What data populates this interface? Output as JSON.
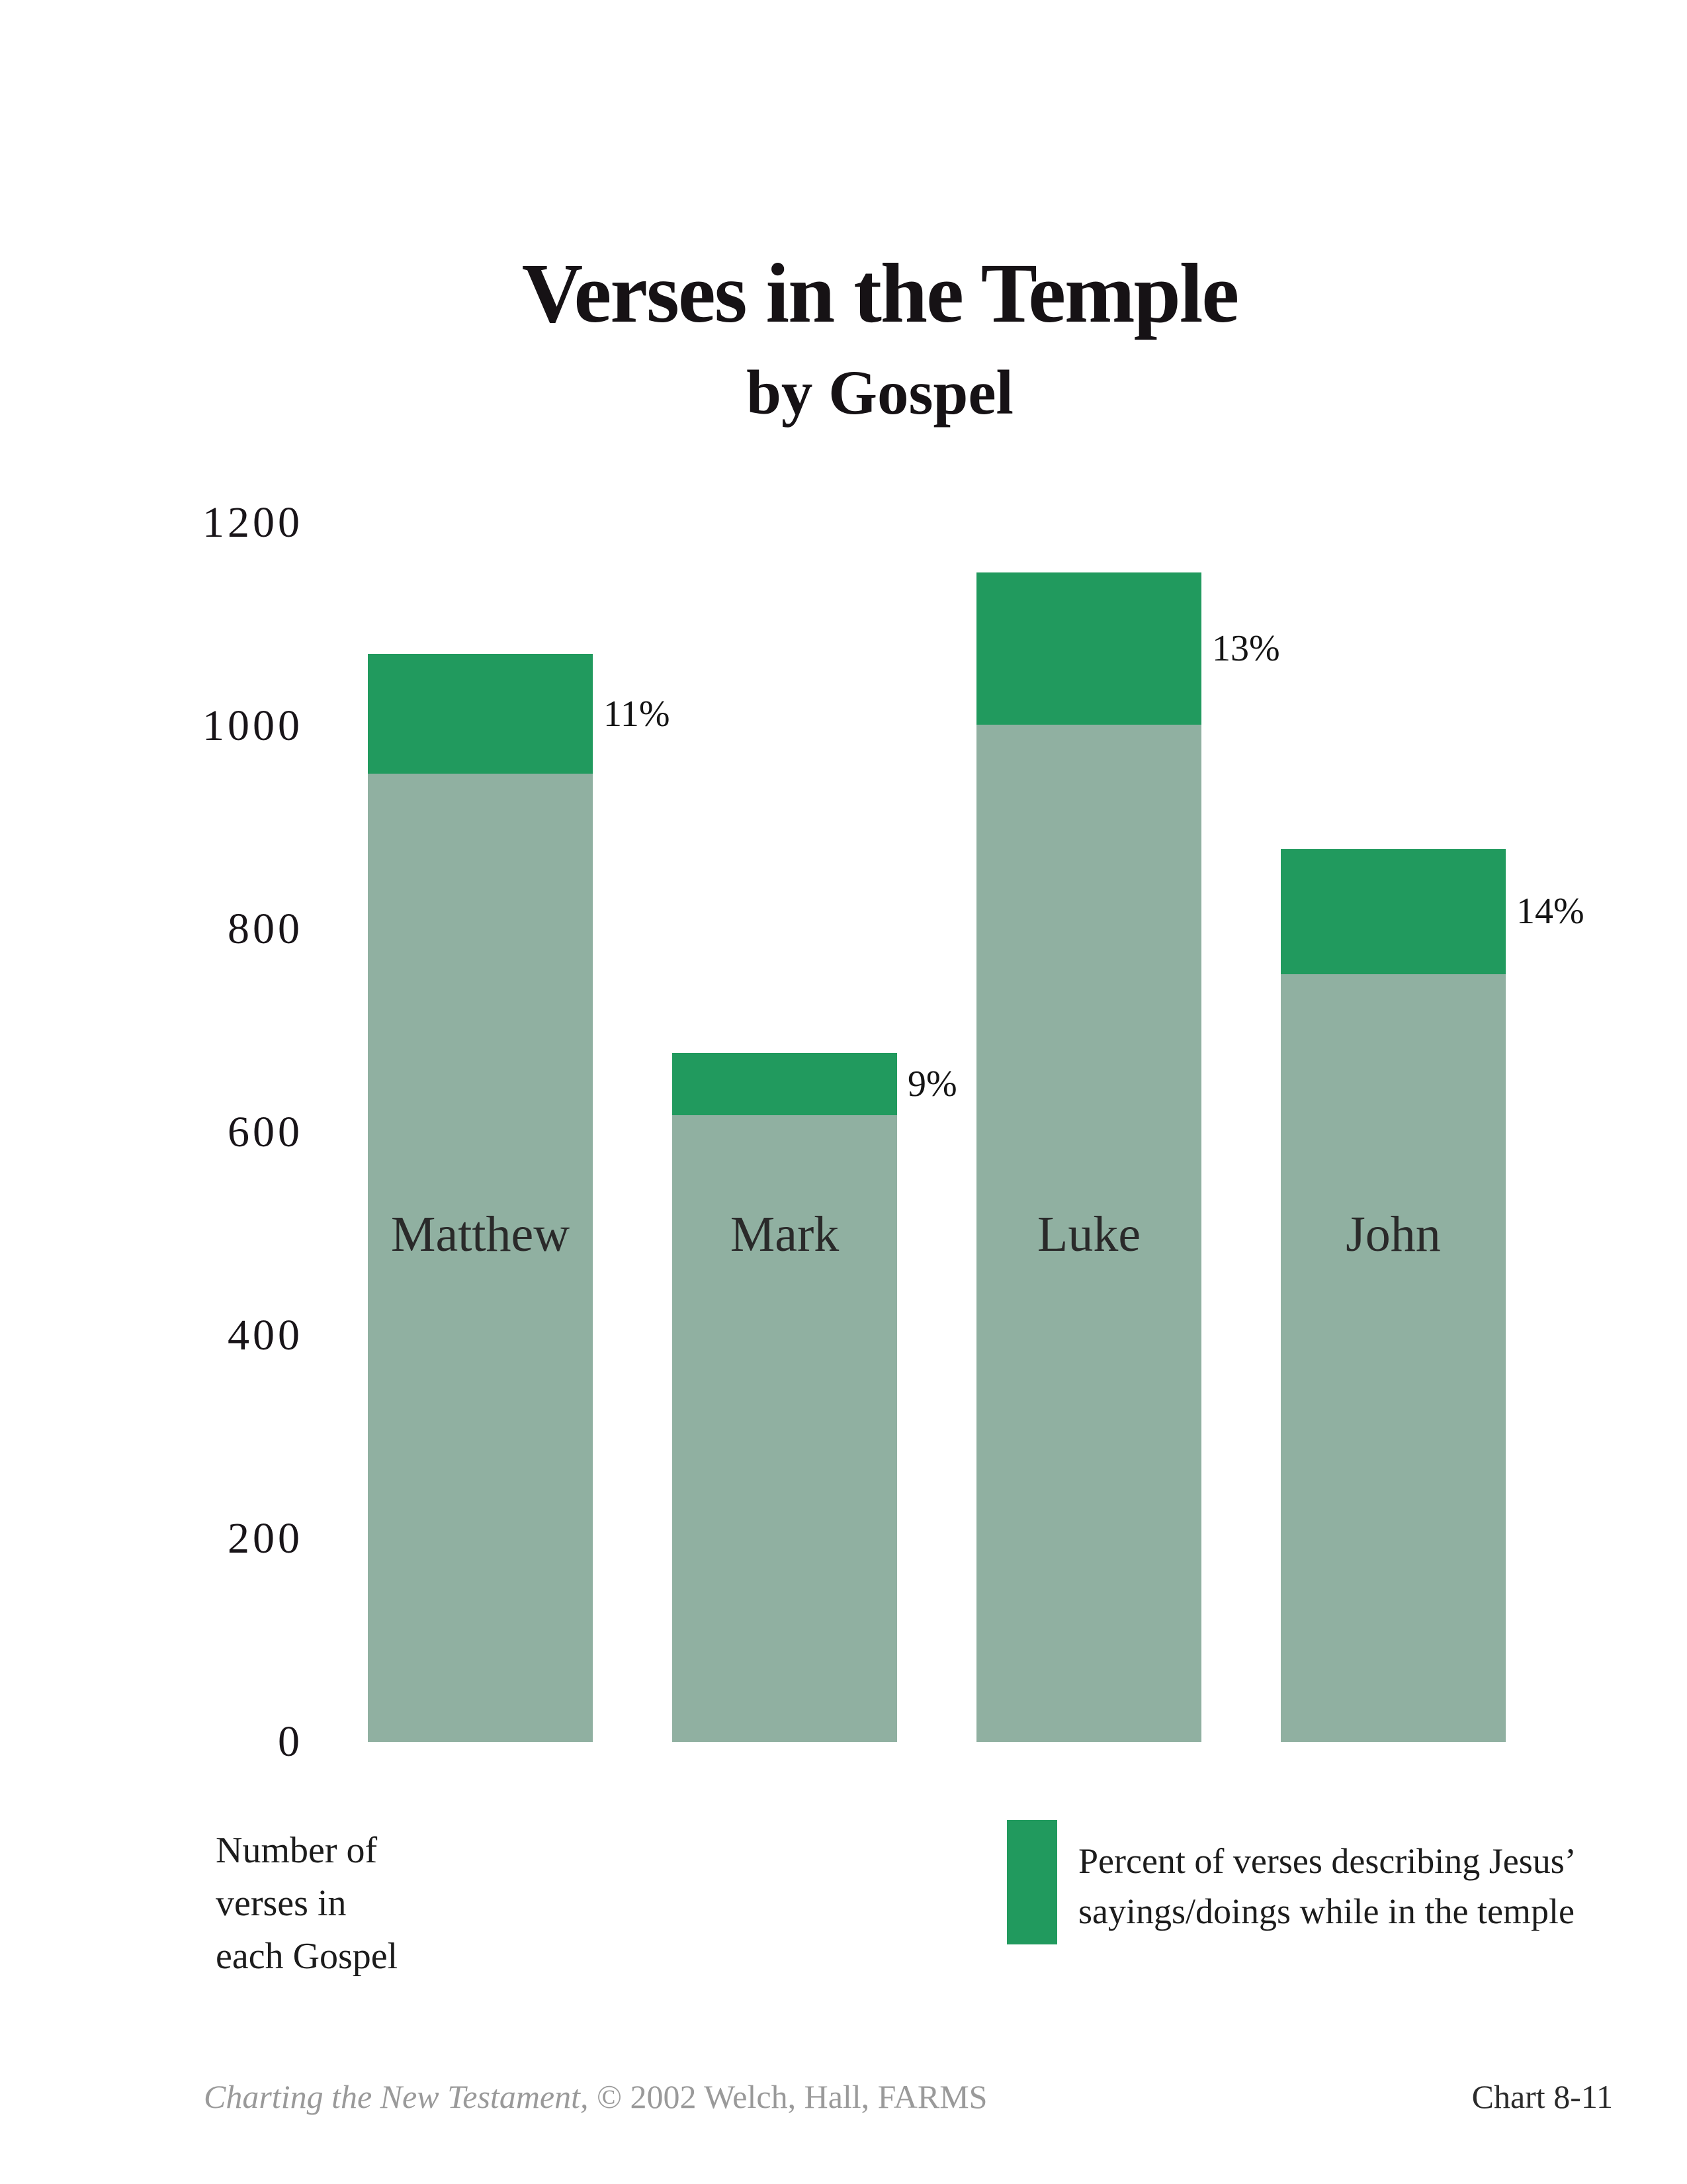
{
  "title": {
    "line1": "Verses in the Temple",
    "line2": "by Gospel"
  },
  "chart_data": {
    "type": "bar",
    "stacked": true,
    "title": "Verses in the Temple",
    "subtitle": "by Gospel",
    "categories": [
      "Matthew",
      "Mark",
      "Luke",
      "John"
    ],
    "series": [
      {
        "name": "Number of verses in each Gospel (remainder, not in the temple)",
        "color": "#90b0a1",
        "values": [
          953,
          617,
          1001,
          756
        ]
      },
      {
        "name": "Percent of verses describing Jesus' sayings/doings while in the temple",
        "color": "#219a5e",
        "values": [
          118,
          61,
          150,
          123
        ]
      }
    ],
    "bar_totals": [
      1071,
      678,
      1151,
      879
    ],
    "percent_labels": [
      "11%",
      "9%",
      "13%",
      "14%"
    ],
    "ylim": [
      0,
      1200
    ],
    "yticks": [
      0,
      200,
      400,
      600,
      800,
      1000,
      1200
    ],
    "grid": false,
    "legend_position": "bottom-right"
  },
  "caption": {
    "lines": [
      "Number of",
      "verses in",
      "each Gospel"
    ]
  },
  "legend": {
    "lines": [
      "Percent of verses describing Jesus’",
      "sayings/doings while in the temple"
    ]
  },
  "footer": {
    "source_italic": "Charting the New Testament,",
    "source_rest": " © 2002 Welch, Hall, FARMS",
    "chart_number": "Chart 8-11"
  },
  "colors": {
    "temple_green": "#219a5e",
    "gospel_sage": "#90b0a1",
    "footer_gray": "#9a9a9a"
  }
}
